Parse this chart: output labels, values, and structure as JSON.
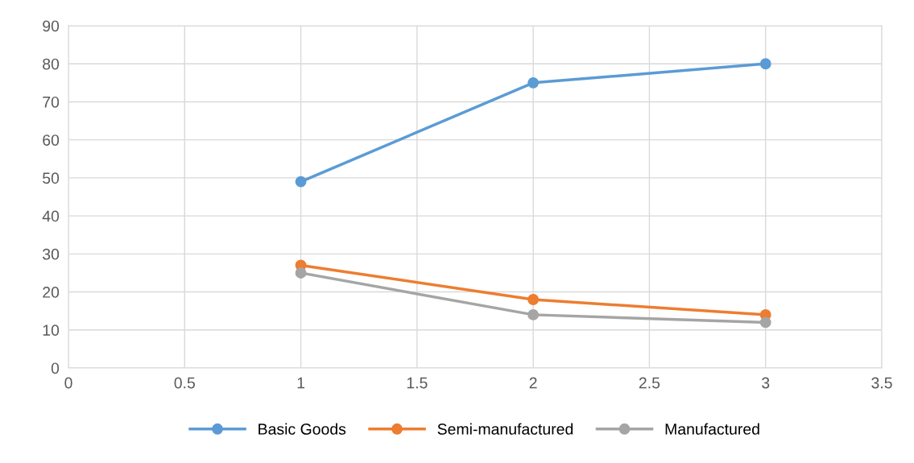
{
  "chart_data": {
    "type": "line",
    "x": [
      1,
      2,
      3
    ],
    "series": [
      {
        "name": "Basic Goods",
        "color": "#5b9bd5",
        "values": [
          49,
          75,
          80
        ]
      },
      {
        "name": "Semi-manufactured",
        "color": "#ed7d31",
        "values": [
          27,
          18,
          14
        ]
      },
      {
        "name": "Manufactured",
        "color": "#a5a5a5",
        "values": [
          25,
          14,
          12
        ]
      }
    ],
    "xlim": [
      0,
      3.5
    ],
    "xticks": [
      0,
      0.5,
      1,
      1.5,
      2,
      2.5,
      3,
      3.5
    ],
    "ylim": [
      0,
      90
    ],
    "yticks": [
      0,
      10,
      20,
      30,
      40,
      50,
      60,
      70,
      80,
      90
    ],
    "grid": true,
    "legend": "bottom",
    "marker": "circle",
    "line_style": "solid"
  }
}
